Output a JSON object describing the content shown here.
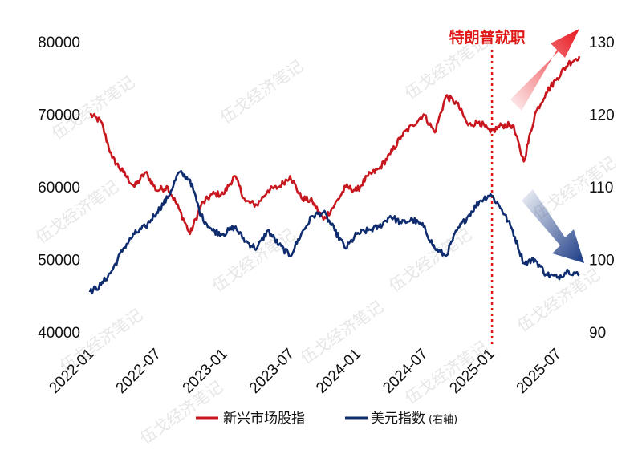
{
  "chart_data": {
    "type": "line",
    "annotation": "特朗普就职",
    "annotation_date": "2025-01",
    "watermark": "伍戈经济笔记",
    "x_ticks": [
      "2022-01",
      "2022-07",
      "2023-01",
      "2023-07",
      "2024-01",
      "2024-07",
      "2025-01",
      "2025-07"
    ],
    "xlim": [
      "2022-01",
      "2025-09"
    ],
    "left_axis": {
      "ticks": [
        "80000",
        "70000",
        "60000",
        "50000",
        "40000"
      ],
      "ylim": [
        40000,
        80000
      ]
    },
    "right_axis": {
      "ticks": [
        "130",
        "120",
        "110",
        "100",
        "90"
      ],
      "ylim": [
        90,
        130
      ]
    },
    "colors": {
      "red": "#c8161e",
      "navy": "#0e2c6e",
      "annotation_line": "#e01818"
    },
    "legend": [
      {
        "label": "新兴市场股指",
        "note": "",
        "color": "#c8161e"
      },
      {
        "label": "美元指数",
        "note": "(右轴)",
        "color": "#0e2c6e"
      }
    ],
    "series": [
      {
        "name": "新兴市场股指",
        "axis": "left",
        "points": [
          [
            "2022-01",
            70000
          ],
          [
            "2022-02",
            69000
          ],
          [
            "2022-03",
            64000
          ],
          [
            "2022-04",
            62000
          ],
          [
            "2022-05",
            60000
          ],
          [
            "2022-06",
            62000
          ],
          [
            "2022-07",
            59500
          ],
          [
            "2022-08",
            60000
          ],
          [
            "2022-09",
            57000
          ],
          [
            "2022-10",
            53500
          ],
          [
            "2022-11",
            57500
          ],
          [
            "2022-12",
            59000
          ],
          [
            "2023-01",
            59000
          ],
          [
            "2023-02",
            61500
          ],
          [
            "2023-03",
            58000
          ],
          [
            "2023-04",
            57500
          ],
          [
            "2023-05",
            59500
          ],
          [
            "2023-06",
            60000
          ],
          [
            "2023-07",
            61500
          ],
          [
            "2023-08",
            58500
          ],
          [
            "2023-09",
            58000
          ],
          [
            "2023-10",
            55500
          ],
          [
            "2023-11",
            57500
          ],
          [
            "2023-12",
            60000
          ],
          [
            "2024-01",
            59500
          ],
          [
            "2024-02",
            61500
          ],
          [
            "2024-03",
            62500
          ],
          [
            "2024-04",
            64500
          ],
          [
            "2024-05",
            67000
          ],
          [
            "2024-06",
            68500
          ],
          [
            "2024-07",
            70000
          ],
          [
            "2024-08",
            67500
          ],
          [
            "2024-09",
            72500
          ],
          [
            "2024-10",
            71500
          ],
          [
            "2024-11",
            68500
          ],
          [
            "2024-12",
            69000
          ],
          [
            "2025-01",
            67500
          ],
          [
            "2025-02",
            68500
          ],
          [
            "2025-03",
            68500
          ],
          [
            "2025-04",
            63500
          ],
          [
            "2025-05",
            70000
          ],
          [
            "2025-06",
            73000
          ],
          [
            "2025-07",
            75000
          ],
          [
            "2025-08",
            77000
          ],
          [
            "2025-09",
            78000
          ]
        ]
      },
      {
        "name": "美元指数",
        "axis": "right",
        "points": [
          [
            "2022-01",
            95.5
          ],
          [
            "2022-02",
            96.5
          ],
          [
            "2022-03",
            98.5
          ],
          [
            "2022-04",
            101.5
          ],
          [
            "2022-05",
            103.5
          ],
          [
            "2022-06",
            104.5
          ],
          [
            "2022-07",
            106.5
          ],
          [
            "2022-08",
            108.5
          ],
          [
            "2022-09",
            112.0
          ],
          [
            "2022-10",
            111.0
          ],
          [
            "2022-11",
            106.0
          ],
          [
            "2022-12",
            104.0
          ],
          [
            "2023-01",
            103.5
          ],
          [
            "2023-02",
            104.5
          ],
          [
            "2023-03",
            102.5
          ],
          [
            "2023-04",
            101.5
          ],
          [
            "2023-05",
            104.0
          ],
          [
            "2023-06",
            102.0
          ],
          [
            "2023-07",
            100.5
          ],
          [
            "2023-08",
            103.5
          ],
          [
            "2023-09",
            106.0
          ],
          [
            "2023-10",
            106.5
          ],
          [
            "2023-11",
            104.0
          ],
          [
            "2023-12",
            101.5
          ],
          [
            "2024-01",
            103.5
          ],
          [
            "2024-02",
            104.0
          ],
          [
            "2024-03",
            104.5
          ],
          [
            "2024-04",
            106.0
          ],
          [
            "2024-05",
            105.0
          ],
          [
            "2024-06",
            105.5
          ],
          [
            "2024-07",
            104.5
          ],
          [
            "2024-08",
            101.5
          ],
          [
            "2024-09",
            100.5
          ],
          [
            "2024-10",
            104.0
          ],
          [
            "2024-11",
            106.0
          ],
          [
            "2024-12",
            108.0
          ],
          [
            "2025-01",
            109.0
          ],
          [
            "2025-02",
            107.0
          ],
          [
            "2025-03",
            104.0
          ],
          [
            "2025-04",
            99.5
          ],
          [
            "2025-05",
            100.0
          ],
          [
            "2025-06",
            98.0
          ],
          [
            "2025-07",
            97.5
          ],
          [
            "2025-08",
            98.5
          ],
          [
            "2025-09",
            97.8
          ]
        ]
      }
    ]
  }
}
